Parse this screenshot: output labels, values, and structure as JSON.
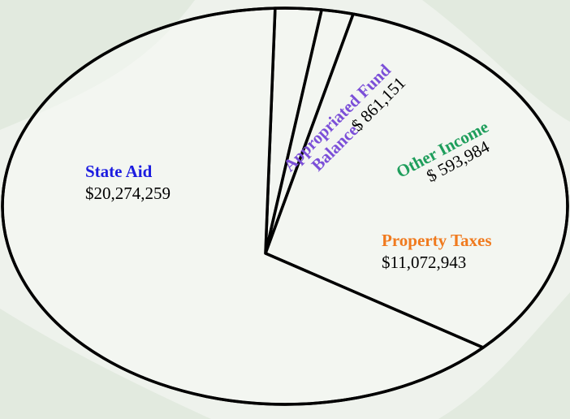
{
  "chart_data": {
    "type": "pie",
    "categories": [
      "Appropriated Fund Balance",
      "Other Income",
      "Property Taxes",
      "State Aid"
    ],
    "values": [
      861151,
      593984,
      11072943,
      20274259
    ],
    "value_labels": [
      "$ 861,151",
      "$ 593,984",
      "$11,072,943",
      "$20,274,259"
    ],
    "label_colors": [
      "#7b4fd8",
      "#1f9e5c",
      "#f07a1e",
      "#1c1ce0"
    ]
  }
}
